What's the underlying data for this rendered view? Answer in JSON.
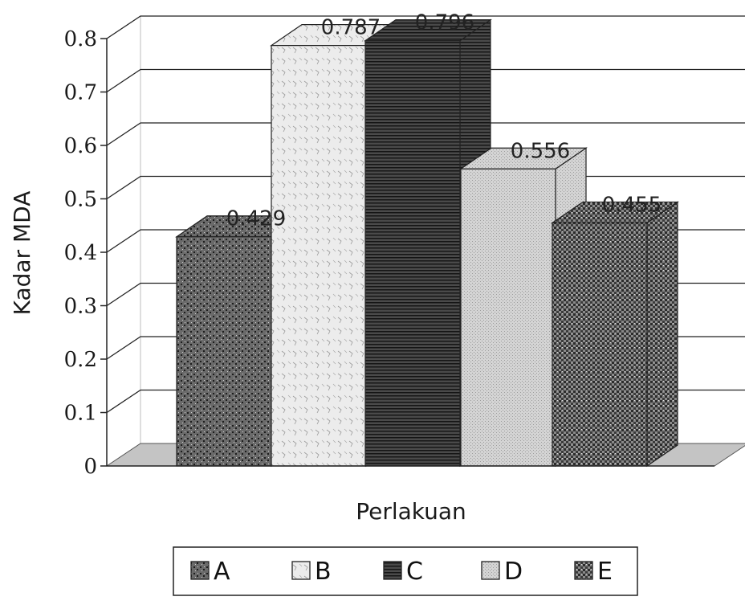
{
  "chart_data": {
    "type": "bar",
    "categories": [
      "A",
      "B",
      "C",
      "D",
      "E"
    ],
    "values": [
      0.429,
      0.787,
      0.796,
      0.556,
      0.455
    ],
    "data_labels": [
      "0.429",
      "0.787",
      "0.796",
      "0.556",
      "0.455"
    ],
    "xlabel": "Perlakuan",
    "ylabel": "Kadar MDA",
    "ylim": [
      0,
      0.8
    ],
    "yticks": [
      "0",
      "0.1",
      "0.2",
      "0.3",
      "0.4",
      "0.5",
      "0.6",
      "0.7",
      "0.8"
    ],
    "grid": true,
    "three_d": true,
    "legend": {
      "placement": "bottom",
      "entries": [
        "A",
        "B",
        "C",
        "D",
        "E"
      ]
    },
    "colors": [
      "#3a3a3a",
      "#e4e4e4",
      "#2a2a2a",
      "#c8c8c8",
      "#4a4a4a"
    ]
  }
}
